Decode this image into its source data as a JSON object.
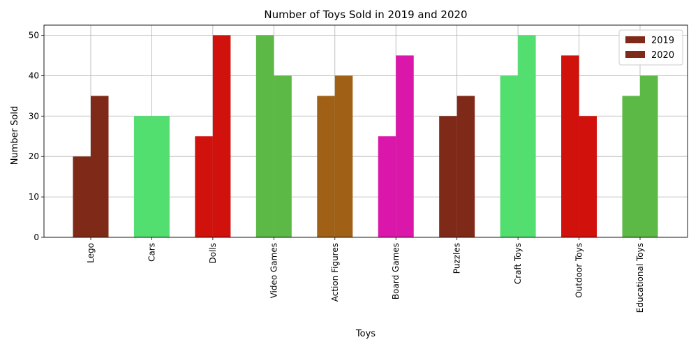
{
  "chart_data": {
    "type": "bar",
    "title": "Number of Toys Sold in 2019 and 2020",
    "xlabel": "Toys",
    "ylabel": "Number Sold",
    "ylim": [
      0,
      52.5
    ],
    "yticks": [
      0,
      10,
      20,
      30,
      40,
      50
    ],
    "grid": true,
    "legend_position": "top-right",
    "categories": [
      "Lego",
      "Cars",
      "Dolls",
      "Video Games",
      "Action Figures",
      "Board Games",
      "Puzzles",
      "Craft Toys",
      "Outdoor Toys",
      "Educational Toys"
    ],
    "category_colors": [
      "#7f2a19",
      "#52df70",
      "#d0110c",
      "#5cb946",
      "#a06015",
      "#db16aa",
      "#7f2a19",
      "#52df70",
      "#d0110c",
      "#5cb946"
    ],
    "series": [
      {
        "name": "2019",
        "values": [
          20,
          30,
          25,
          50,
          35,
          25,
          30,
          40,
          45,
          35
        ]
      },
      {
        "name": "2020",
        "values": [
          35,
          30,
          50,
          40,
          40,
          45,
          35,
          50,
          30,
          40
        ]
      }
    ],
    "legend_colors": [
      "#7f2a19",
      "#7f2a19"
    ]
  }
}
